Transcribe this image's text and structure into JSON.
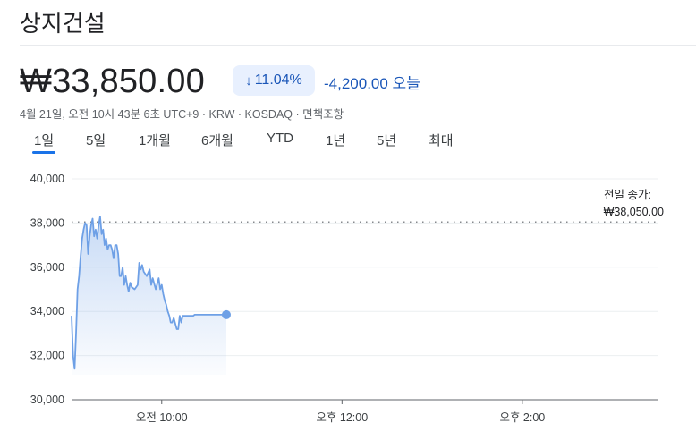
{
  "header": {
    "title": "상지건설",
    "price": "₩33,850.00",
    "change_pct": "11.04%",
    "change_pct_arrow": "↓",
    "change_abs": "-4,200.00 오늘",
    "meta": "4월 21일, 오전 10시 43분 6초 UTC+9 · KRW · KOSDAQ · 면책조항"
  },
  "tabs": [
    "1일",
    "5일",
    "1개월",
    "6개월",
    "YTD",
    "1년",
    "5년",
    "최대"
  ],
  "active_tab": "1일",
  "colors": {
    "accent": "#1a73e8",
    "negative": "#1a56b8",
    "line": "#6ea0e6",
    "chip_bg": "#e8f0fe"
  },
  "chart_data": {
    "type": "area",
    "previous_close": {
      "label_line1": "전일 종가:",
      "label_line2": "₩38,050.00",
      "value": 38050
    },
    "y_ticks": [
      "40,000",
      "38,000",
      "36,000",
      "34,000",
      "32,000",
      "30,000"
    ],
    "y_tick_values": [
      40000,
      38000,
      36000,
      34000,
      32000,
      30000
    ],
    "ylim": [
      30000,
      40000
    ],
    "x_ticks": [
      "오전 10:00",
      "오후 12:00",
      "오후 2:00"
    ],
    "x_tick_values": [
      "10:00",
      "12:00",
      "14:00"
    ],
    "x_range": [
      "09:00",
      "15:30"
    ],
    "grid": true,
    "series": [
      {
        "x": [
          "09:00",
          "09:01",
          "09:02",
          "09:03",
          "09:04",
          "09:05",
          "09:06",
          "09:07",
          "09:08",
          "09:09",
          "09:10",
          "09:11",
          "09:12",
          "09:13",
          "09:14",
          "09:15",
          "09:16",
          "09:17",
          "09:18",
          "09:19",
          "09:20",
          "09:21",
          "09:22",
          "09:23",
          "09:24",
          "09:25",
          "09:26",
          "09:27",
          "09:28",
          "09:29",
          "09:30",
          "09:31",
          "09:32",
          "09:33",
          "09:34",
          "09:35",
          "09:36",
          "09:37",
          "09:38",
          "09:39",
          "09:40",
          "09:42",
          "09:44",
          "09:45",
          "09:46",
          "09:47",
          "09:48",
          "09:50",
          "09:52",
          "09:53",
          "09:54",
          "09:56",
          "09:58",
          "09:59",
          "10:00",
          "10:01",
          "10:02",
          "10:03",
          "10:04",
          "10:05",
          "10:06",
          "10:07",
          "10:08",
          "10:10",
          "10:11",
          "10:12",
          "10:13",
          "10:14",
          "10:15",
          "10:16",
          "10:17",
          "10:18",
          "10:20",
          "10:21",
          "10:22",
          "10:23",
          "10:24",
          "10:25",
          "10:26",
          "10:27",
          "10:28",
          "10:29",
          "10:30",
          "10:31",
          "10:32",
          "10:34",
          "10:35",
          "10:36",
          "10:37",
          "10:38",
          "10:39",
          "10:40",
          "10:41",
          "10:42",
          "10:43"
        ],
        "values": [
          33800,
          32000,
          31400,
          33000,
          35000,
          35600,
          36500,
          37300,
          37700,
          38000,
          37900,
          36600,
          37400,
          37900,
          38200,
          37400,
          37700,
          37300,
          37900,
          38300,
          37500,
          37700,
          37000,
          37300,
          36800,
          37000,
          37000,
          36800,
          36400,
          37000,
          37000,
          36600,
          35600,
          35600,
          36000,
          35200,
          35600,
          35200,
          34900,
          35300,
          35100,
          35000,
          35200,
          36200,
          35900,
          36100,
          35800,
          35600,
          35900,
          35200,
          35500,
          35000,
          35500,
          35000,
          35200,
          34800,
          34500,
          34300,
          34000,
          33800,
          33500,
          33500,
          33700,
          33200,
          33200,
          33800,
          33500,
          33800,
          33800,
          33800,
          33800,
          33800,
          33800,
          33800,
          33850,
          33850,
          33850,
          33850,
          33850,
          33850,
          33850,
          33850,
          33850,
          33850,
          33850,
          33850,
          33850,
          33850,
          33850,
          33850,
          33850,
          33850,
          33850,
          33850,
          33850
        ]
      }
    ]
  }
}
